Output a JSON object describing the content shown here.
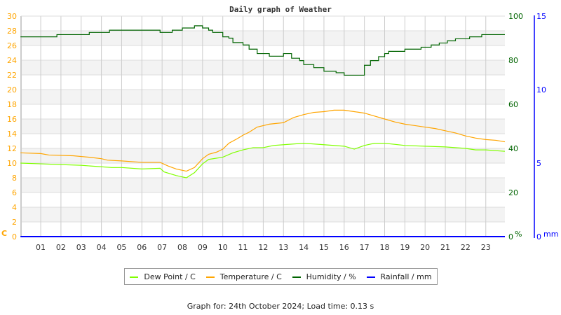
{
  "chart_data": {
    "type": "line",
    "title": "Daily graph of Weather",
    "x_tick_labels": [
      "01",
      "02",
      "03",
      "04",
      "05",
      "06",
      "07",
      "08",
      "09",
      "10",
      "11",
      "12",
      "13",
      "14",
      "15",
      "16",
      "17",
      "18",
      "19",
      "20",
      "21",
      "22",
      "23"
    ],
    "xlim": [
      0,
      24
    ],
    "y_left": {
      "unit": "C",
      "range": [
        0,
        30
      ],
      "step": 2,
      "color": "#ffa500"
    },
    "y_right": {
      "unit": "%",
      "range": [
        0,
        100
      ],
      "step": 20,
      "color": "#006400"
    },
    "y_rain": {
      "unit": "mm",
      "range": [
        0,
        15
      ],
      "step": 5,
      "color": "#0000ff"
    },
    "grid": true,
    "legend_placement": "bottom",
    "series": [
      {
        "name": "Dew Point / C",
        "axis": "left",
        "color": "#80ff00",
        "x": [
          0,
          1,
          2,
          3,
          4,
          4.5,
          5,
          6,
          6.9,
          7.1,
          7.7,
          8.2,
          8.6,
          9,
          9.3,
          10,
          10.5,
          11,
          11.5,
          12,
          12.5,
          13,
          14,
          15,
          16,
          16.5,
          17,
          17.5,
          18,
          19,
          20,
          21,
          22,
          22.5,
          23,
          24
        ],
        "y": [
          10.0,
          9.9,
          9.8,
          9.7,
          9.5,
          9.4,
          9.4,
          9.2,
          9.3,
          8.8,
          8.3,
          8.0,
          8.7,
          9.9,
          10.5,
          10.8,
          11.4,
          11.8,
          12.1,
          12.1,
          12.4,
          12.5,
          12.7,
          12.5,
          12.3,
          11.9,
          12.4,
          12.7,
          12.7,
          12.4,
          12.3,
          12.2,
          12.0,
          11.8,
          11.8,
          11.6
        ]
      },
      {
        "name": "Temperature / C",
        "axis": "left",
        "color": "#ffa500",
        "x": [
          0,
          1,
          1.4,
          2.6,
          3,
          3.4,
          4,
          4.3,
          5,
          6,
          6.9,
          7.3,
          7.7,
          8.2,
          8.6,
          9,
          9.3,
          9.7,
          10,
          10.3,
          10.7,
          11,
          11.3,
          11.7,
          12.3,
          13,
          13.5,
          14,
          14.5,
          15,
          15.5,
          16,
          16.5,
          17,
          17.5,
          18,
          18.5,
          19,
          19.5,
          20,
          20.5,
          21,
          21.5,
          22,
          22.5,
          23,
          23.5,
          24
        ],
        "y": [
          11.4,
          11.3,
          11.1,
          11.0,
          10.9,
          10.8,
          10.6,
          10.4,
          10.3,
          10.1,
          10.1,
          9.6,
          9.2,
          8.9,
          9.4,
          10.6,
          11.2,
          11.5,
          11.9,
          12.7,
          13.3,
          13.8,
          14.2,
          14.9,
          15.3,
          15.5,
          16.2,
          16.6,
          16.9,
          17.0,
          17.2,
          17.2,
          17.0,
          16.8,
          16.4,
          16.0,
          15.6,
          15.3,
          15.1,
          14.9,
          14.7,
          14.4,
          14.1,
          13.7,
          13.4,
          13.2,
          13.1,
          12.9
        ]
      },
      {
        "name": "Humidity / %",
        "axis": "right",
        "color": "#006400",
        "step": true,
        "x": [
          0,
          1.8,
          3.4,
          4.4,
          6.9,
          7.5,
          8.0,
          8.6,
          9.0,
          9.3,
          9.5,
          10,
          10.3,
          10.5,
          11,
          11.3,
          11.7,
          12.3,
          13,
          13.4,
          13.8,
          14,
          14.5,
          15,
          15.6,
          16,
          16.6,
          17,
          17.3,
          17.7,
          18,
          18.2,
          19,
          19.8,
          20.3,
          20.7,
          21.1,
          21.5,
          22.2,
          22.8,
          24
        ],
        "y": [
          90.6,
          91.6,
          92.6,
          93.6,
          92.6,
          93.6,
          94.6,
          95.6,
          94.6,
          93.6,
          92.6,
          90.6,
          90,
          88,
          86.9,
          85,
          83,
          81.8,
          83,
          80.9,
          79.8,
          78,
          76.6,
          75,
          74.3,
          73.2,
          73.2,
          77.7,
          79.8,
          81.6,
          83,
          84,
          85,
          85.9,
          86.9,
          87.8,
          88.8,
          89.7,
          90.6,
          91.6,
          91.6
        ]
      },
      {
        "name": "Rainfall / mm",
        "axis": "rain",
        "color": "#0000ff",
        "x": [
          0,
          24
        ],
        "y": [
          0,
          0
        ]
      }
    ],
    "footer": "Graph for: 24th October 2024; Load time: 0.13 s"
  }
}
